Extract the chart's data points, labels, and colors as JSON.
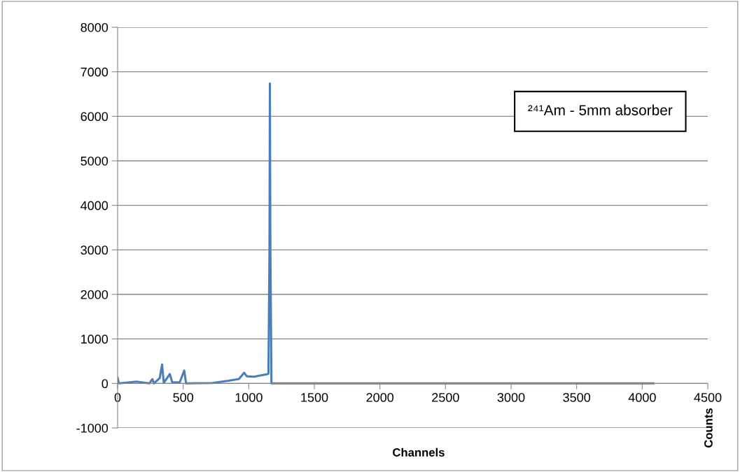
{
  "chart_data": {
    "type": "line",
    "xlabel": "Channels",
    "ylabel": "Counts",
    "annotations": [
      "²⁴¹Am - 5mm absorber"
    ],
    "series": [
      {
        "color": "#4a7ebb",
        "x": [
          0,
          10,
          144,
          241,
          265,
          277,
          321,
          339,
          352,
          398,
          416,
          473,
          508,
          522,
          720,
          845,
          925,
          965,
          985,
          1040,
          1143,
          1150,
          1158,
          1161,
          1165,
          1173,
          1500,
          2000,
          2500,
          3000,
          3500,
          4085
        ],
        "values": [
          130,
          0,
          40,
          0,
          95,
          0,
          120,
          425,
          10,
          210,
          30,
          20,
          290,
          0,
          10,
          60,
          100,
          240,
          160,
          150,
          210,
          220,
          3000,
          6740,
          3000,
          0,
          0,
          0,
          0,
          0,
          0,
          0
        ]
      }
    ],
    "xlim": [
      0,
      4500
    ],
    "xticks": [
      0,
      500,
      1000,
      1500,
      2000,
      2500,
      3000,
      3500,
      4000,
      4500
    ],
    "ylim": [
      -1000,
      8000
    ],
    "yticks": [
      -1000,
      0,
      1000,
      2000,
      3000,
      4000,
      5000,
      6000,
      7000,
      8000
    ],
    "grid": "y",
    "legend": false,
    "marker": "none",
    "line_style": "solid"
  }
}
